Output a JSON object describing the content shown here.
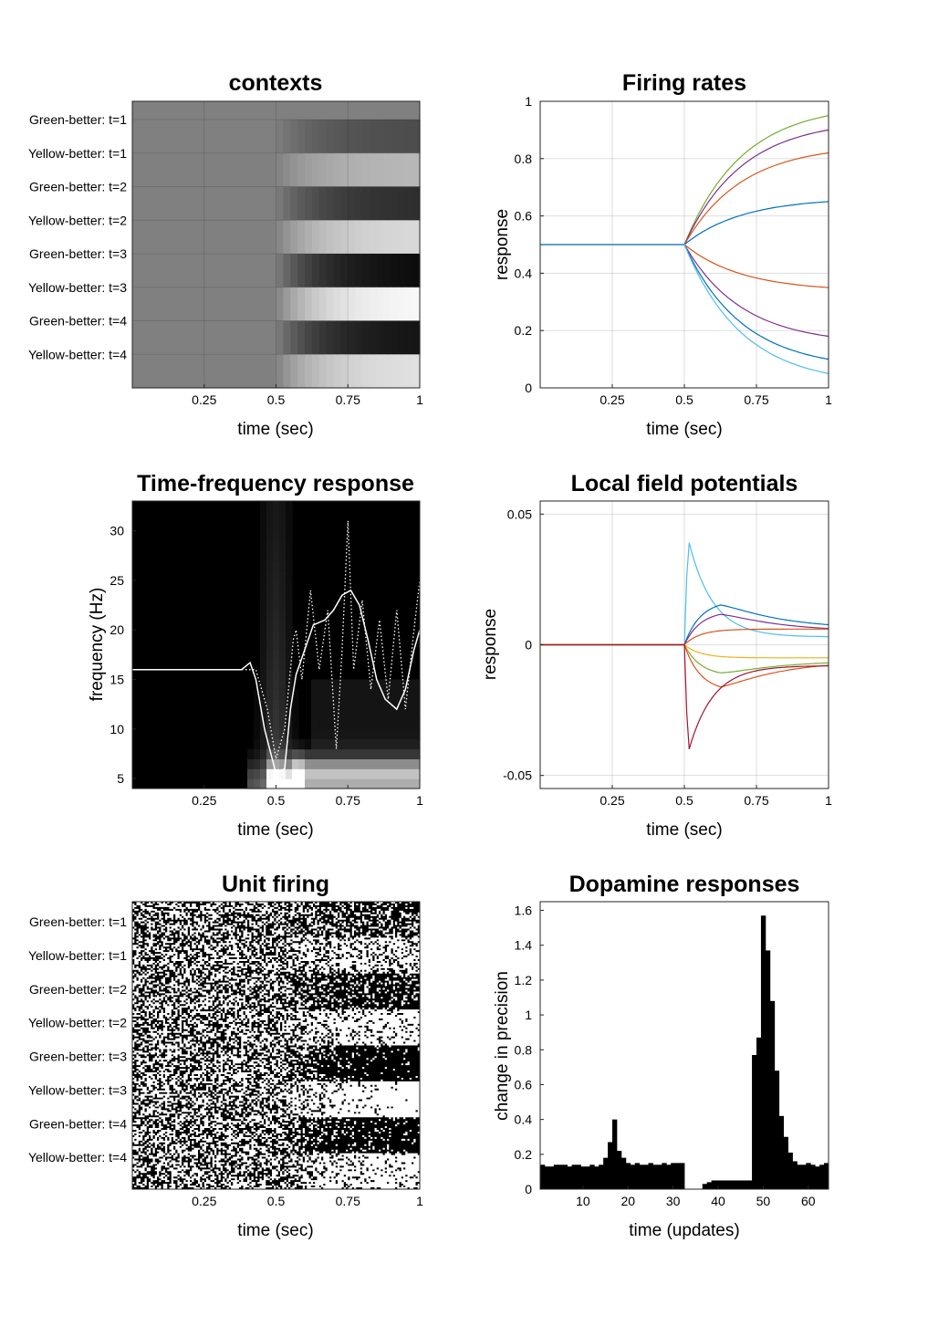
{
  "chart_data": [
    {
      "id": "contexts",
      "type": "heatmap",
      "title": "contexts",
      "xlabel": "time (sec)",
      "ylabel": "",
      "xlim": [
        0,
        1
      ],
      "xticks": [
        "0.25",
        "0.5",
        "0.75",
        "1"
      ],
      "rows": [
        "Green-better: t=1",
        "Yellow-better: t=1",
        "Green-better: t=2",
        "Yellow-better: t=2",
        "Green-better: t=3",
        "Yellow-better: t=3",
        "Green-better: t=4",
        "Yellow-better: t=4"
      ],
      "colormap": "gray",
      "grid": true,
      "onset": 0.5,
      "final_values": [
        0.3,
        0.72,
        0.18,
        0.85,
        0.05,
        0.97,
        0.08,
        0.88
      ]
    },
    {
      "id": "firing",
      "type": "line",
      "title": "Firing rates",
      "xlabel": "time (sec)",
      "ylabel": "response",
      "xlim": [
        0,
        1
      ],
      "ylim": [
        0,
        1
      ],
      "xticks": [
        "0.25",
        "0.5",
        "0.75",
        "1"
      ],
      "yticks": [
        "0",
        "0.2",
        "0.4",
        "0.6",
        "0.8",
        "1"
      ],
      "grid": true,
      "onset": 0.5,
      "start": 0.5,
      "series": [
        {
          "color": "#77ac30",
          "end": 0.95
        },
        {
          "color": "#7e2f8e",
          "end": 0.9
        },
        {
          "color": "#d95319",
          "end": 0.82
        },
        {
          "color": "#0072bd",
          "end": 0.65
        },
        {
          "color": "#d95319",
          "end": 0.35
        },
        {
          "color": "#7e2f8e",
          "end": 0.18
        },
        {
          "color": "#0072bd",
          "end": 0.1
        },
        {
          "color": "#4dbeee",
          "end": 0.05
        }
      ]
    },
    {
      "id": "tf",
      "type": "heatmap",
      "title": "Time-frequency response",
      "xlabel": "time (sec)",
      "ylabel": "frequency (Hz)",
      "xlim": [
        0,
        1
      ],
      "ylim": [
        4,
        33
      ],
      "xticks": [
        "0.25",
        "0.5",
        "0.75",
        "1"
      ],
      "yticks": [
        "5",
        "10",
        "15",
        "20",
        "25",
        "30"
      ],
      "colormap": "gray",
      "overlay_solid": [
        [
          0,
          16
        ],
        [
          0.38,
          16
        ],
        [
          0.41,
          16.7
        ],
        [
          0.43,
          15
        ],
        [
          0.46,
          10
        ],
        [
          0.5,
          5.5
        ],
        [
          0.53,
          6
        ],
        [
          0.55,
          12
        ],
        [
          0.57,
          15.5
        ],
        [
          0.6,
          18
        ],
        [
          0.63,
          20.5
        ],
        [
          0.67,
          21
        ],
        [
          0.7,
          22
        ],
        [
          0.73,
          23.5
        ],
        [
          0.76,
          24
        ],
        [
          0.79,
          22.5
        ],
        [
          0.82,
          19
        ],
        [
          0.85,
          15
        ],
        [
          0.88,
          13
        ],
        [
          0.92,
          12
        ],
        [
          0.95,
          14
        ],
        [
          0.98,
          18
        ],
        [
          1,
          20
        ]
      ],
      "overlay_dotted": [
        [
          0,
          16
        ],
        [
          0.43,
          16
        ],
        [
          0.47,
          12
        ],
        [
          0.5,
          7
        ],
        [
          0.53,
          10
        ],
        [
          0.56,
          19
        ],
        [
          0.57,
          20
        ],
        [
          0.59,
          15
        ],
        [
          0.62,
          24
        ],
        [
          0.65,
          16
        ],
        [
          0.68,
          22
        ],
        [
          0.71,
          8
        ],
        [
          0.73,
          18
        ],
        [
          0.75,
          31
        ],
        [
          0.77,
          16
        ],
        [
          0.8,
          23
        ],
        [
          0.83,
          14
        ],
        [
          0.86,
          21
        ],
        [
          0.89,
          13
        ],
        [
          0.92,
          22
        ],
        [
          0.95,
          12
        ],
        [
          0.98,
          20
        ],
        [
          1,
          25
        ]
      ]
    },
    {
      "id": "lfp",
      "type": "line",
      "title": "Local field potentials",
      "xlabel": "time (sec)",
      "ylabel": "response",
      "xlim": [
        0,
        1
      ],
      "ylim": [
        -0.055,
        0.055
      ],
      "xticks": [
        "0.25",
        "0.5",
        "0.75",
        "1"
      ],
      "yticks": [
        "-0.05",
        "0",
        "0.05"
      ],
      "grid": true,
      "onset": 0.5,
      "series": [
        {
          "color": "#4dbeee",
          "peak": 0.047,
          "end": 0.003,
          "fast": true
        },
        {
          "color": "#0072bd",
          "peak": 0.017,
          "end": 0.006,
          "fast": false
        },
        {
          "color": "#7e2f8e",
          "peak": 0.013,
          "end": 0.005,
          "fast": false
        },
        {
          "color": "#d95319",
          "peak": 0.006,
          "end": 0.006,
          "fast": false
        },
        {
          "color": "#edb120",
          "peak": -0.005,
          "end": -0.005,
          "fast": false
        },
        {
          "color": "#77ac30",
          "peak": -0.012,
          "end": -0.006,
          "fast": false
        },
        {
          "color": "#d95319",
          "peak": -0.018,
          "end": -0.006,
          "fast": false
        },
        {
          "color": "#a2142f",
          "peak": -0.047,
          "end": -0.008,
          "fast": true
        }
      ]
    },
    {
      "id": "unit",
      "type": "heatmap",
      "title": "Unit firing",
      "xlabel": "time (sec)",
      "ylabel": "",
      "xlim": [
        0,
        1
      ],
      "xticks": [
        "0.25",
        "0.5",
        "0.75",
        "1"
      ],
      "rows": [
        "Green-better: t=1",
        "Yellow-better: t=1",
        "Green-better: t=2",
        "Yellow-better: t=2",
        "Green-better: t=3",
        "Yellow-better: t=3",
        "Green-better: t=4",
        "Yellow-better: t=4"
      ],
      "colormap": "binary raster"
    },
    {
      "id": "dopamine",
      "type": "bar",
      "title": "Dopamine responses",
      "xlabel": "time (updates)",
      "ylabel": "change in precision",
      "xlim": [
        0.5,
        64.5
      ],
      "ylim": [
        0,
        1.65
      ],
      "xticks": [
        "10",
        "20",
        "30",
        "40",
        "50",
        "60"
      ],
      "yticks": [
        "0",
        "0.2",
        "0.4",
        "0.6",
        "0.8",
        "1",
        "1.2",
        "1.4",
        "1.6"
      ],
      "x": [
        1,
        2,
        3,
        4,
        5,
        6,
        7,
        8,
        9,
        10,
        11,
        12,
        13,
        14,
        15,
        16,
        17,
        18,
        19,
        20,
        21,
        22,
        23,
        24,
        25,
        26,
        27,
        28,
        29,
        30,
        31,
        32,
        33,
        34,
        35,
        36,
        37,
        38,
        39,
        40,
        41,
        42,
        43,
        44,
        45,
        46,
        47,
        48,
        49,
        50,
        51,
        52,
        53,
        54,
        55,
        56,
        57,
        58,
        59,
        60,
        61,
        62,
        63,
        64
      ],
      "values": [
        0.14,
        0.13,
        0.13,
        0.14,
        0.14,
        0.14,
        0.13,
        0.14,
        0.14,
        0.13,
        0.13,
        0.14,
        0.13,
        0.14,
        0.18,
        0.27,
        0.4,
        0.22,
        0.18,
        0.15,
        0.14,
        0.15,
        0.14,
        0.14,
        0.15,
        0.14,
        0.14,
        0.15,
        0.14,
        0.15,
        0.15,
        0.15,
        0,
        0,
        0,
        0,
        0.03,
        0.04,
        0.05,
        0.05,
        0.05,
        0.05,
        0.05,
        0.05,
        0.05,
        0.05,
        0.05,
        0.77,
        0.87,
        1.57,
        1.37,
        1.08,
        0.68,
        0.42,
        0.3,
        0.21,
        0.16,
        0.14,
        0.14,
        0.15,
        0.14,
        0.13,
        0.14,
        0.15
      ]
    }
  ]
}
